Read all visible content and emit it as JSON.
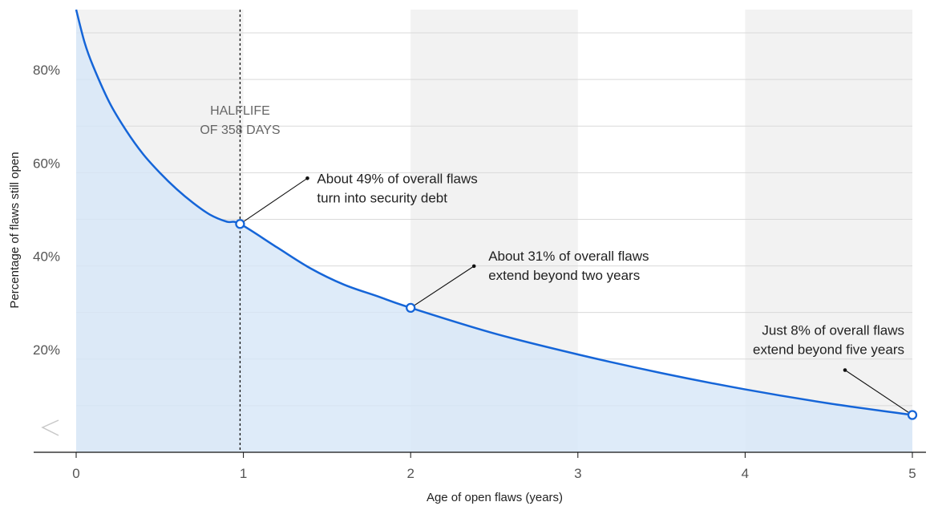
{
  "chart_data": {
    "type": "area",
    "xlabel": "Age of open flaws (years)",
    "ylabel": "Percentage of flaws still open",
    "xlim": [
      0,
      5
    ],
    "ylim": [
      0,
      95
    ],
    "x_ticks": [
      "0",
      "1",
      "2",
      "3",
      "4",
      "5"
    ],
    "y_ticks": [
      {
        "value": 20,
        "label": "20%"
      },
      {
        "value": 40,
        "label": "40%"
      },
      {
        "value": 60,
        "label": "60%"
      },
      {
        "value": 80,
        "label": "80%"
      }
    ],
    "y_axis_break": true,
    "grid": true,
    "series": [
      {
        "x": [
          0,
          0.05,
          0.1,
          0.2,
          0.3,
          0.4,
          0.5,
          0.6,
          0.7,
          0.8,
          0.9,
          0.98,
          1.2,
          1.4,
          1.6,
          1.8,
          2.0,
          2.5,
          3.0,
          3.5,
          4.0,
          4.5,
          5.0
        ],
        "y": [
          95,
          88,
          83,
          75,
          69,
          64,
          60,
          56.5,
          53.5,
          51,
          49.5,
          49,
          44,
          39.5,
          36,
          33.5,
          31,
          25.5,
          21,
          17,
          13.5,
          10.5,
          8
        ]
      }
    ],
    "color": "#1565d8",
    "fill_color": "#d6e6f8",
    "halflife": {
      "x": 0.98,
      "label_lines": [
        "HALFLIFE",
        "OF 358 DAYS"
      ]
    },
    "annotations": [
      {
        "x": 0.98,
        "y": 49,
        "lines": [
          "About 49% of overall flaws",
          "turn into security debt"
        ]
      },
      {
        "x": 2.0,
        "y": 31,
        "lines": [
          "About 31% of overall flaws",
          "extend beyond two years"
        ]
      },
      {
        "x": 5.0,
        "y": 8,
        "lines": [
          "Just 8% of overall flaws",
          "extend beyond five years"
        ]
      }
    ]
  }
}
